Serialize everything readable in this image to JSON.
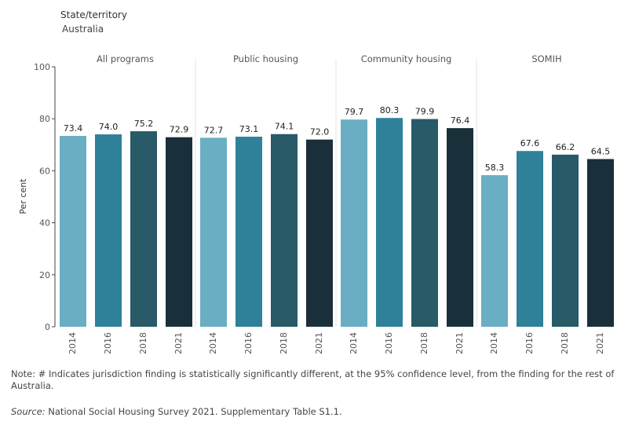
{
  "filter": {
    "title": "State/territory",
    "value": "Australia"
  },
  "chart_data": {
    "type": "bar",
    "ylabel": "Per cent",
    "ylim": [
      0,
      100
    ],
    "yticks": [
      0,
      20,
      40,
      60,
      80,
      100
    ],
    "grid": false,
    "panels": [
      {
        "name": "All programs",
        "categories": [
          "2014",
          "2016",
          "2018",
          "2021"
        ],
        "values": [
          73.4,
          74.0,
          75.2,
          72.9
        ]
      },
      {
        "name": "Public housing",
        "categories": [
          "2014",
          "2016",
          "2018",
          "2021"
        ],
        "values": [
          72.7,
          73.1,
          74.1,
          72.0
        ]
      },
      {
        "name": "Community housing",
        "categories": [
          "2014",
          "2016",
          "2018",
          "2021"
        ],
        "values": [
          79.7,
          80.3,
          79.9,
          76.4
        ]
      },
      {
        "name": "SOMIH",
        "categories": [
          "2014",
          "2016",
          "2018",
          "2021"
        ],
        "values": [
          58.3,
          67.6,
          66.2,
          64.5
        ]
      }
    ],
    "colors": [
      "#6aaec3",
      "#2e8198",
      "#285a68",
      "#192f39"
    ]
  },
  "footer": {
    "note": "Note: # Indicates jurisdiction finding is statistically significantly different, at the 95% confidence level, from the finding for the rest of Australia.",
    "source_label": "Source:",
    "source_text": " National Social Housing Survey 2021. Supplementary Table S1.1."
  }
}
